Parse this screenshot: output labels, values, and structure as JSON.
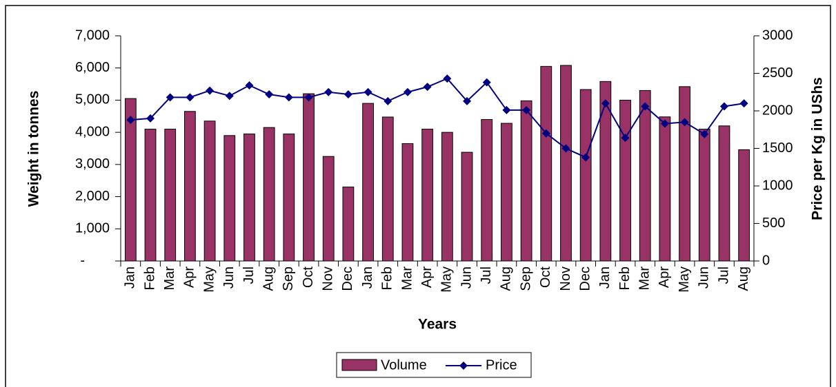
{
  "chart_data": {
    "type": "bar",
    "x_label": "Years",
    "y_label": "Weight in tonnes",
    "y2_label": "Price per Kg in UShs",
    "categories": [
      "Jan",
      "Feb",
      "Mar",
      "Apr",
      "May",
      "Jun",
      "Jul",
      "Aug",
      "Sep",
      "Oct",
      "Nov",
      "Dec",
      "Jan",
      "Feb",
      "Mar",
      "Apr",
      "May",
      "Jun",
      "Jul",
      "Aug",
      "Sep",
      "Oct",
      "Nov",
      "Dec",
      "Jan",
      "Feb",
      "Mar",
      "Apr",
      "May",
      "Jun",
      "Jul",
      "Aug"
    ],
    "series": [
      {
        "name": "Volume",
        "type": "bar",
        "color": "#993366",
        "values": [
          5050,
          4100,
          4100,
          4650,
          4350,
          3900,
          3950,
          4150,
          3950,
          5200,
          3250,
          2300,
          4900,
          4475,
          3650,
          4100,
          4000,
          3380,
          4400,
          4280,
          4980,
          6050,
          6080,
          5330,
          5580,
          5000,
          5300,
          4480,
          5420,
          4100,
          4200,
          3460
        ]
      },
      {
        "name": "Price",
        "type": "line",
        "axis": "y2",
        "color": "#000080",
        "values": [
          1880,
          1900,
          2180,
          2180,
          2270,
          2200,
          2340,
          2220,
          2180,
          2180,
          2250,
          2220,
          2250,
          2130,
          2250,
          2320,
          2430,
          2130,
          2380,
          2010,
          2010,
          1700,
          1500,
          1380,
          2100,
          1640,
          2060,
          1830,
          1850,
          1690,
          2060,
          2100
        ]
      }
    ],
    "ylim": [
      0,
      7000
    ],
    "yticks": [
      {
        "value": 0,
        "label": "-"
      },
      {
        "value": 1000,
        "label": "1,000"
      },
      {
        "value": 2000,
        "label": "2,000"
      },
      {
        "value": 3000,
        "label": "3,000"
      },
      {
        "value": 4000,
        "label": "4,000"
      },
      {
        "value": 5000,
        "label": "5,000"
      },
      {
        "value": 6000,
        "label": "6,000"
      },
      {
        "value": 7000,
        "label": "7,000"
      }
    ],
    "y2lim": [
      0,
      3000
    ],
    "y2ticks": [
      0,
      500,
      1000,
      1500,
      2000,
      2500,
      3000
    ],
    "legend": "bottom"
  }
}
